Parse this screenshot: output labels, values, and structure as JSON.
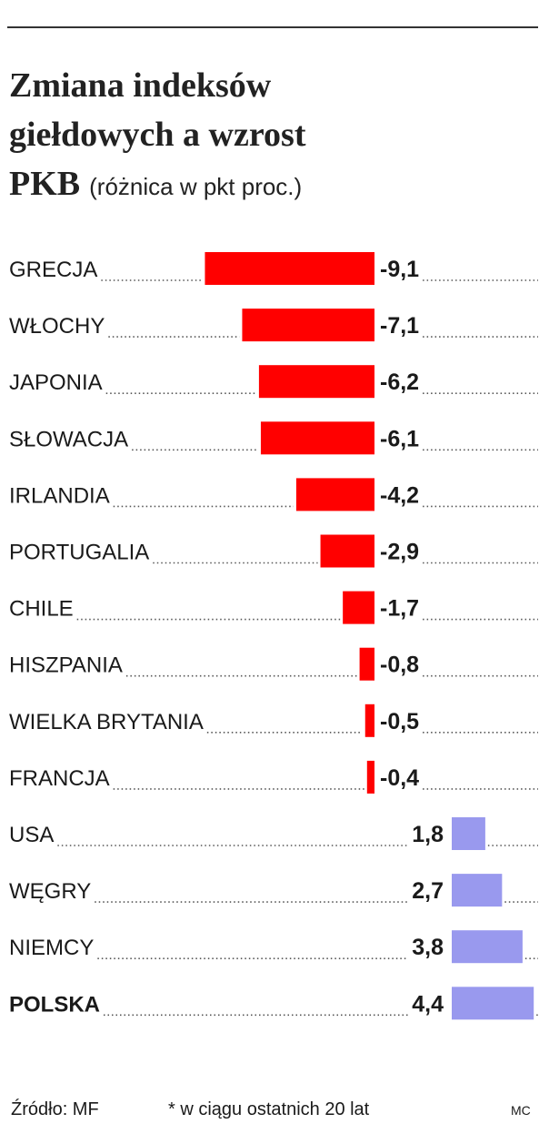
{
  "chart_data": {
    "type": "bar",
    "orientation": "horizontal",
    "title": [
      "Zmiana indeksów",
      "giełdowych a wzrost",
      "PKB"
    ],
    "subtitle": "(różnica w pkt proc.)",
    "categories": [
      "GRECJA",
      "WŁOCHY",
      "JAPONIA",
      "SŁOWACJA",
      "IRLANDIA",
      "PORTUGALIA",
      "CHILE",
      "HISZPANIA",
      "WIELKA BRYTANIA",
      "FRANCJA",
      "USA",
      "WĘGRY",
      "NIEMCY",
      "POLSKA"
    ],
    "values": [
      -9.1,
      -7.1,
      -6.2,
      -6.1,
      -4.2,
      -2.9,
      -1.7,
      -0.8,
      -0.5,
      -0.4,
      1.8,
      2.7,
      3.8,
      4.4
    ],
    "value_labels": [
      "-9,1",
      "-7,1",
      "-6,2",
      "-6,1",
      "-4,2",
      "-2,9",
      "-1,7",
      "-0,8",
      "-0,5",
      "-0,4",
      "1,8",
      "2,7",
      "3,8",
      "4,4"
    ],
    "negative_color": "#ff0000",
    "positive_color": "#9999ee",
    "source": "Źródło: MF",
    "note": "* w ciągu ostatnich 20 lat",
    "author": "MC"
  }
}
